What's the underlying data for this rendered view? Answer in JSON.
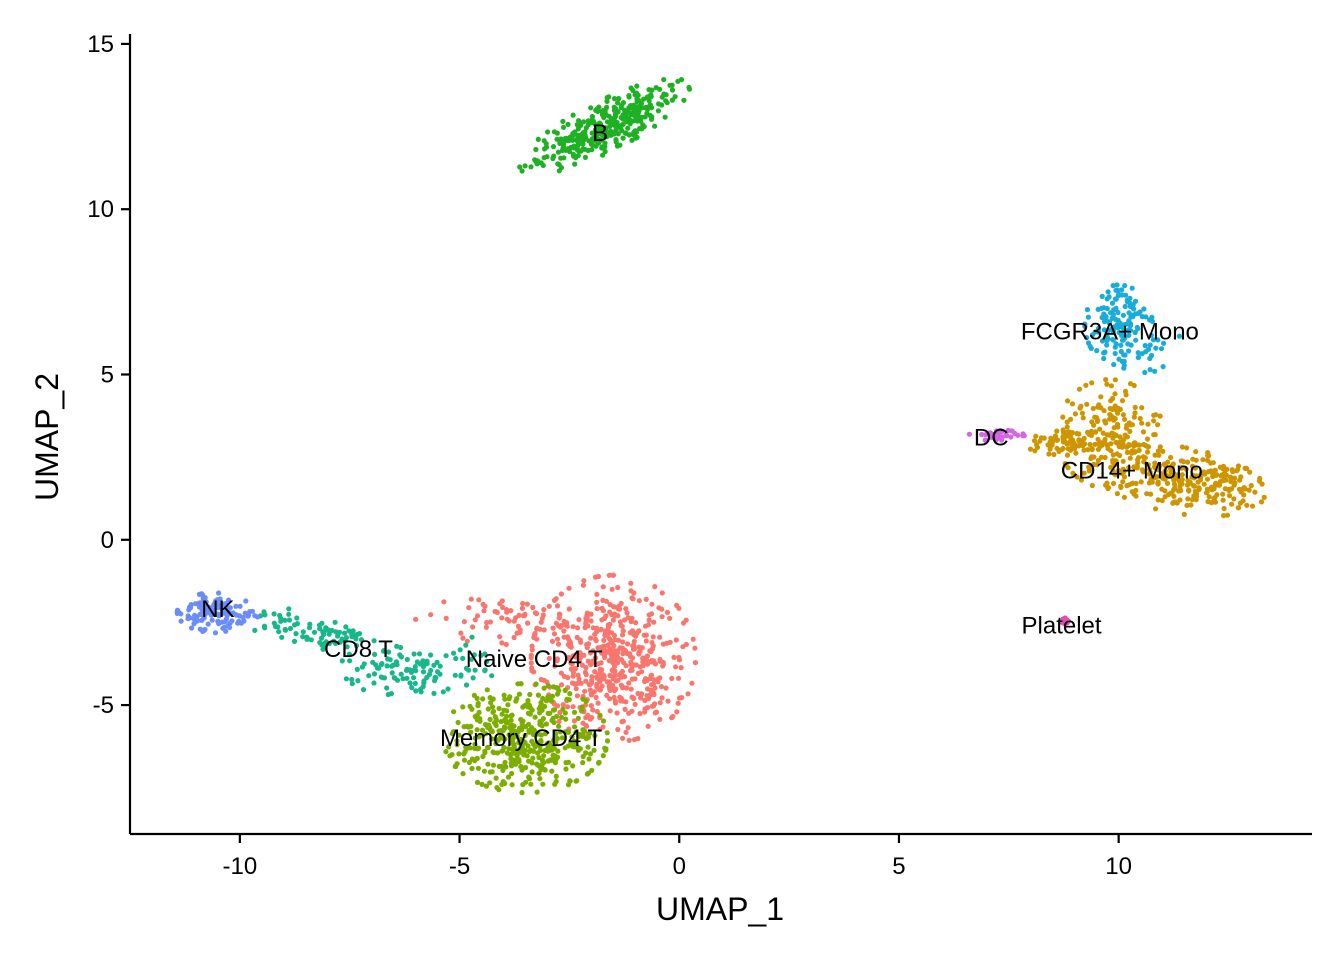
{
  "chart_data": {
    "type": "scatter",
    "xlabel": "UMAP_1",
    "ylabel": "UMAP_2",
    "xlim": [
      -12.5,
      14.4
    ],
    "ylim": [
      -8.9,
      15.3
    ],
    "x_ticks": [
      -10,
      -5,
      0,
      5,
      10
    ],
    "y_ticks": [
      -5,
      0,
      5,
      10,
      15
    ],
    "x_tick_labels": [
      "-10",
      "-5",
      "0",
      "5",
      "10"
    ],
    "y_tick_labels": [
      "-5",
      "0",
      "5",
      "10",
      "15"
    ],
    "grid": false,
    "legend": "none",
    "clusters": [
      {
        "label": "Naive CD4 T",
        "color": "#F8766D",
        "label_x": -3.3,
        "label_y": -3.6,
        "blobs": [
          {
            "cx": -1.5,
            "cy": -3.6,
            "sx": 0.85,
            "sy": 1.15,
            "n": 520,
            "rot": 0
          },
          {
            "cx": -3.8,
            "cy": -2.4,
            "sx": 1.0,
            "sy": 0.35,
            "n": 70,
            "rot": 0
          }
        ]
      },
      {
        "label": "Memory CD4 T",
        "color": "#7CAE00",
        "label_x": -3.6,
        "label_y": -6.0,
        "blobs": [
          {
            "cx": -3.5,
            "cy": -6.0,
            "sx": 0.85,
            "sy": 0.75,
            "n": 430,
            "rot": 0
          }
        ]
      },
      {
        "label": "CD14+ Mono",
        "color": "#CD9600",
        "label_x": 10.3,
        "label_y": 2.1,
        "blobs": [
          {
            "cx": 9.8,
            "cy": 3.2,
            "sx": 0.55,
            "sy": 0.75,
            "n": 200,
            "rot": 0
          },
          {
            "cx": 11.4,
            "cy": 1.8,
            "sx": 0.9,
            "sy": 0.45,
            "n": 220,
            "rot": -15
          },
          {
            "cx": 8.8,
            "cy": 3.0,
            "sx": 0.45,
            "sy": 0.2,
            "n": 50,
            "rot": 0
          },
          {
            "cx": 12.5,
            "cy": 1.6,
            "sx": 0.35,
            "sy": 0.3,
            "n": 40,
            "rot": 0
          }
        ]
      },
      {
        "label": "B",
        "color": "#1FB024",
        "label_x": -1.8,
        "label_y": 12.3,
        "blobs": [
          {
            "cx": -1.7,
            "cy": 12.5,
            "sx": 0.32,
            "sy": 1.05,
            "n": 340,
            "rot": -55
          }
        ]
      },
      {
        "label": "CD8 T",
        "color": "#17B78C",
        "label_x": -7.3,
        "label_y": -3.3,
        "blobs": [
          {
            "cx": -8.0,
            "cy": -2.9,
            "sx": 0.6,
            "sy": 0.25,
            "n": 60,
            "rot": -10
          },
          {
            "cx": -6.4,
            "cy": -4.0,
            "sx": 0.6,
            "sy": 0.35,
            "n": 90,
            "rot": -10
          },
          {
            "cx": -9.2,
            "cy": -2.5,
            "sx": 0.4,
            "sy": 0.2,
            "n": 20,
            "rot": 0
          },
          {
            "cx": -5.0,
            "cy": -3.6,
            "sx": 0.45,
            "sy": 0.5,
            "n": 25,
            "rot": 0
          }
        ]
      },
      {
        "label": "FCGR3A+ Mono",
        "color": "#19ACD9",
        "label_x": 9.8,
        "label_y": 6.3,
        "blobs": [
          {
            "cx": 10.0,
            "cy": 6.5,
            "sx": 0.35,
            "sy": 0.55,
            "n": 140,
            "rot": 0
          },
          {
            "cx": 10.8,
            "cy": 5.6,
            "sx": 0.4,
            "sy": 0.35,
            "n": 20,
            "rot": 0
          }
        ]
      },
      {
        "label": "NK",
        "color": "#6B8DFA",
        "label_x": -10.5,
        "label_y": -2.1,
        "blobs": [
          {
            "cx": -10.5,
            "cy": -2.2,
            "sx": 0.42,
            "sy": 0.28,
            "n": 130,
            "rot": 0
          }
        ]
      },
      {
        "label": "DC",
        "color": "#D664E6",
        "label_x": 7.1,
        "label_y": 3.1,
        "blobs": [
          {
            "cx": 7.2,
            "cy": 3.15,
            "sx": 0.3,
            "sy": 0.08,
            "n": 32,
            "rot": 0
          }
        ]
      },
      {
        "label": "Platelet",
        "color": "#E74AB5",
        "label_x": 8.7,
        "label_y": -2.6,
        "blobs": [
          {
            "cx": 8.75,
            "cy": -2.45,
            "sx": 0.05,
            "sy": 0.04,
            "n": 14,
            "rot": 0
          }
        ]
      }
    ]
  }
}
